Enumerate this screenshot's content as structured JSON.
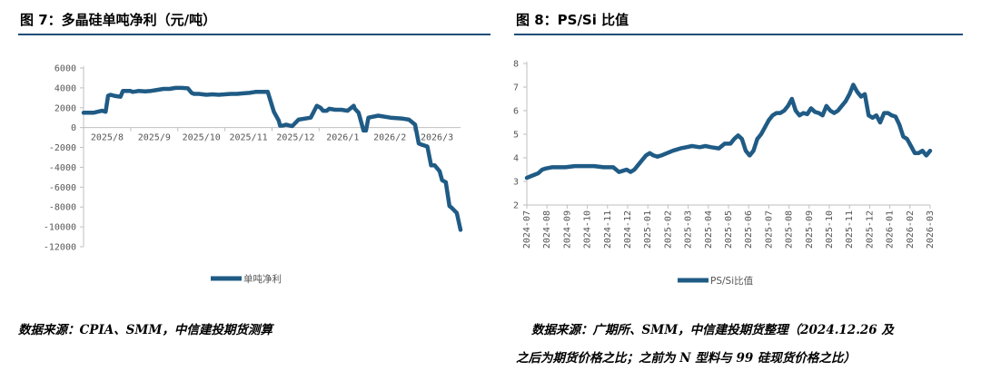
{
  "left": {
    "heading": "图 7：多晶硅单吨净利（元/吨）",
    "source": "数据来源：CPIA、SMM，中信建投期货测算"
  },
  "right": {
    "heading": "图 8：PS/Si 比值",
    "source_line1": "数据来源：广期所、SMM，中信建投期货整理（2024.12.26 及",
    "source_line2": "之后为期货价格之比；之前为 N 型料与 99 硅现货价格之比）"
  },
  "colors": {
    "series": "#1f5b85",
    "rule": "#1f4e79",
    "axis": "#bfbfbf"
  },
  "chart_data": [
    {
      "type": "line",
      "ylim": [
        -12000,
        6000
      ],
      "yticks": [
        "6000",
        "4000",
        "2000",
        "0",
        "-2000",
        "-4000",
        "-6000",
        "-8000",
        "-10000",
        "-12000"
      ],
      "xtick_labels": [
        "2025/8",
        "2025/9",
        "2025/10",
        "2025/11",
        "2025/12",
        "2026/1",
        "2026/2",
        "2026/3"
      ],
      "series": [
        {
          "name": "单吨净利",
          "x": [
            0,
            0.8,
            1.5,
            1.8,
            2.0,
            2.2,
            2.5,
            3.0,
            3.2,
            3.8,
            4.0,
            4.3,
            4.5,
            5.0,
            5.5,
            6.0,
            6.5,
            7.0,
            7.5,
            8.0,
            8.5,
            8.8,
            9.0,
            9.4,
            9.7,
            10.0,
            10.5,
            11.0,
            11.5,
            12.0,
            12.5,
            13.0,
            13.5,
            14.0,
            14.5,
            15.0,
            15.3,
            15.5,
            15.9,
            16.0,
            16.2,
            16.5,
            16.8,
            17.0,
            17.5,
            18.0,
            18.5,
            19.0,
            19.3,
            19.5,
            19.8,
            20.0,
            20.5,
            21.0,
            21.5,
            22.0,
            22.1,
            22.4,
            22.8,
            23.0,
            23.2,
            24.0,
            25.0,
            26.0,
            26.5,
            27.0,
            27.3,
            27.5,
            28.0,
            28.3,
            28.6,
            29.0,
            29.2,
            29.5,
            29.8,
            30.0,
            30.4,
            30.7
          ],
          "values": [
            1500,
            1500,
            1700,
            1600,
            3200,
            3300,
            3200,
            3100,
            3700,
            3700,
            3600,
            3650,
            3700,
            3650,
            3700,
            3800,
            3900,
            3900,
            4000,
            4000,
            3950,
            3500,
            3400,
            3400,
            3350,
            3300,
            3350,
            3300,
            3350,
            3400,
            3400,
            3450,
            3500,
            3600,
            3600,
            3600,
            2400,
            1600,
            700,
            200,
            200,
            300,
            200,
            150,
            800,
            900,
            1000,
            2200,
            2000,
            1700,
            1700,
            1900,
            1800,
            1800,
            1700,
            2200,
            1900,
            1500,
            -300,
            -300,
            1000,
            1200,
            1000,
            900,
            800,
            300,
            -1600,
            -1700,
            -1900,
            -3800,
            -3800,
            -4400,
            -5300,
            -5500,
            -7900,
            -8100,
            -8600,
            -10300
          ]
        }
      ]
    },
    {
      "type": "line",
      "ylim": [
        2,
        8
      ],
      "yticks": [
        "8",
        "7",
        "6",
        "5",
        "4",
        "3",
        "2"
      ],
      "xtick_labels": [
        "2024-07",
        "2024-08",
        "2024-09",
        "2024-10",
        "2024-11",
        "2024-12",
        "2025-01",
        "2025-02",
        "2025-03",
        "2025-04",
        "2025-05",
        "2025-06",
        "2025-07",
        "2025-08",
        "2025-09",
        "2025-10",
        "2025-11",
        "2025-12",
        "2026-01",
        "2026-02",
        "2026-03"
      ],
      "series": [
        {
          "name": "PS/Si比值",
          "x": [
            0,
            0.3,
            0.6,
            0.8,
            1.0,
            1.3,
            1.6,
            2.0,
            2.5,
            3.0,
            3.5,
            4.0,
            4.5,
            4.8,
            5.0,
            5.2,
            5.4,
            5.6,
            5.8,
            6.0,
            6.2,
            6.4,
            6.6,
            6.8,
            7.0,
            7.3,
            7.6,
            8.0,
            8.3,
            8.6,
            9.0,
            9.3,
            9.6,
            10.0,
            10.3,
            10.6,
            10.8,
            11.0,
            11.2,
            11.4,
            11.6,
            11.8,
            12.0,
            12.2,
            12.4,
            12.6,
            12.8,
            13.0,
            13.2,
            13.4,
            13.6,
            13.8,
            14.0,
            14.2,
            14.4,
            14.6,
            14.8,
            15.0,
            15.2,
            15.4,
            15.6,
            15.8,
            16.0,
            16.2,
            16.4,
            16.6,
            16.8,
            17.0,
            17.2,
            17.4,
            17.6,
            17.8,
            18.0,
            18.2,
            18.4,
            18.6,
            18.8,
            19.0,
            19.2,
            19.4,
            19.6,
            19.8,
            20.0,
            20.2,
            20.4,
            20.6,
            20.8,
            21.0
          ],
          "values": [
            3.15,
            3.25,
            3.35,
            3.5,
            3.55,
            3.6,
            3.6,
            3.6,
            3.65,
            3.65,
            3.65,
            3.6,
            3.6,
            3.4,
            3.45,
            3.5,
            3.4,
            3.5,
            3.7,
            3.9,
            4.1,
            4.2,
            4.1,
            4.05,
            4.1,
            4.2,
            4.3,
            4.4,
            4.45,
            4.5,
            4.45,
            4.5,
            4.45,
            4.4,
            4.6,
            4.6,
            4.8,
            4.95,
            4.8,
            4.3,
            4.1,
            4.3,
            4.8,
            5.0,
            5.3,
            5.6,
            5.8,
            5.9,
            5.9,
            6.0,
            6.2,
            6.5,
            6.0,
            5.8,
            5.9,
            5.85,
            6.1,
            5.95,
            5.9,
            5.8,
            6.2,
            6.0,
            5.9,
            6.0,
            6.2,
            6.4,
            6.7,
            7.1,
            6.8,
            6.6,
            6.7,
            5.8,
            5.7,
            5.8,
            5.5,
            5.9,
            5.9,
            5.8,
            5.75,
            5.4,
            4.9,
            4.8,
            4.5,
            4.2,
            4.2,
            4.3,
            4.1,
            4.3
          ]
        }
      ]
    }
  ]
}
